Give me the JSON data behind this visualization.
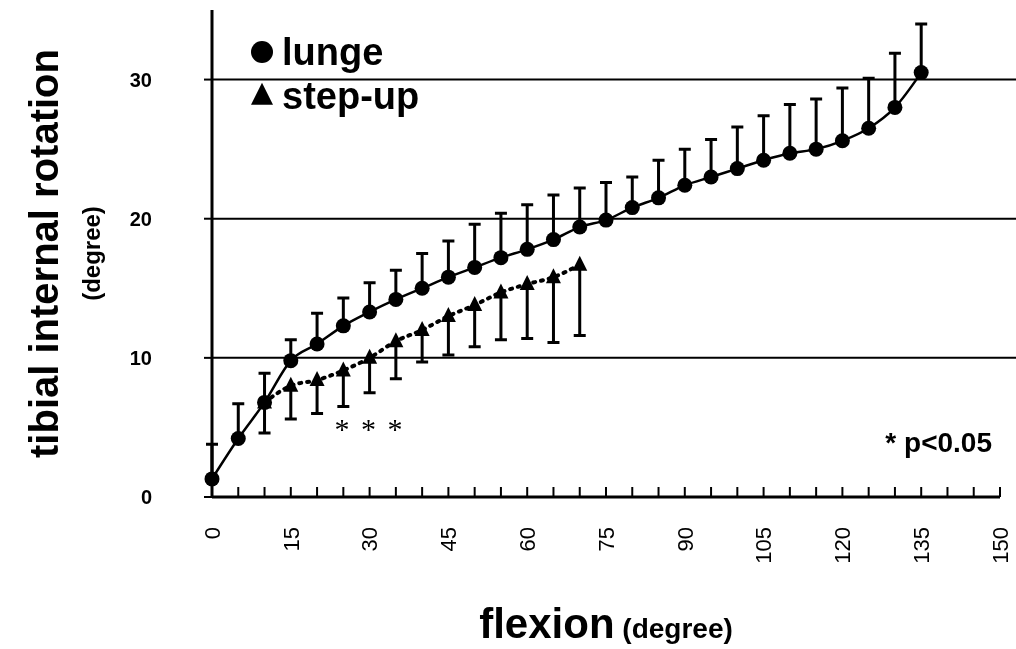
{
  "chart_data": {
    "type": "line",
    "xlabel": "flexion (degree)",
    "ylabel": "tibial internal rotation (degree)",
    "xlim": [
      0,
      150
    ],
    "ylim": [
      0,
      35
    ],
    "xticks": [
      0,
      {
        "value": 5,
        "label": null
      },
      {
        "value": 10,
        "label": null
      },
      15,
      {
        "value": 20,
        "label": null
      },
      {
        "value": 25,
        "label": null
      },
      30,
      {
        "value": 35,
        "label": null
      },
      {
        "value": 40,
        "label": null
      },
      45,
      {
        "value": 50,
        "label": null
      },
      {
        "value": 55,
        "label": null
      },
      60,
      {
        "value": 65,
        "label": null
      },
      {
        "value": 70,
        "label": null
      },
      75,
      {
        "value": 80,
        "label": null
      },
      {
        "value": 85,
        "label": null
      },
      90,
      {
        "value": 95,
        "label": null
      },
      {
        "value": 100,
        "label": null
      },
      105,
      {
        "value": 110,
        "label": null
      },
      {
        "value": 115,
        "label": null
      },
      120,
      {
        "value": 125,
        "label": null
      },
      {
        "value": 130,
        "label": null
      },
      135,
      {
        "value": 140,
        "label": null
      },
      {
        "value": 145,
        "label": null
      },
      150
    ],
    "yticks": [
      0,
      10,
      20,
      30
    ],
    "grid": "y",
    "legend": "top left",
    "series": [
      {
        "name": "lunge",
        "color": "#000000",
        "marker": "circle",
        "line_style": "solid",
        "x": [
          0,
          5,
          10,
          15,
          20,
          25,
          30,
          35,
          40,
          45,
          50,
          55,
          60,
          65,
          70,
          75,
          80,
          85,
          90,
          95,
          100,
          105,
          110,
          115,
          120,
          125,
          130,
          135
        ],
        "values": [
          1.3,
          4.2,
          6.8,
          9.8,
          11.0,
          12.3,
          13.3,
          14.2,
          15.0,
          15.8,
          16.5,
          17.2,
          17.8,
          18.5,
          19.4,
          19.9,
          20.8,
          21.5,
          22.4,
          23.0,
          23.6,
          24.2,
          24.7,
          25.0,
          25.6,
          26.5,
          28.0,
          30.5
        ],
        "errors": [
          [
            1.3,
            3.8
          ],
          [
            4.2,
            6.7
          ],
          [
            6.8,
            8.9
          ],
          [
            9.8,
            11.3
          ],
          [
            11.0,
            13.2
          ],
          [
            12.3,
            14.3
          ],
          [
            13.3,
            15.4
          ],
          [
            14.2,
            16.3
          ],
          [
            15.0,
            17.5
          ],
          [
            15.8,
            18.4
          ],
          [
            16.5,
            19.6
          ],
          [
            17.2,
            20.4
          ],
          [
            17.8,
            21.0
          ],
          [
            18.5,
            21.7
          ],
          [
            19.4,
            22.2
          ],
          [
            19.9,
            22.6
          ],
          [
            20.8,
            23.0
          ],
          [
            21.5,
            24.2
          ],
          [
            22.4,
            25.0
          ],
          [
            23.0,
            25.7
          ],
          [
            23.6,
            26.6
          ],
          [
            24.2,
            27.4
          ],
          [
            24.7,
            28.2
          ],
          [
            25.0,
            28.6
          ],
          [
            25.6,
            29.4
          ],
          [
            26.5,
            30.1
          ],
          [
            28.0,
            31.9
          ],
          [
            30.5,
            34.0
          ]
        ]
      },
      {
        "name": "step-up",
        "color": "#000000",
        "marker": "triangle",
        "line_style": "dotted",
        "x": [
          10,
          15,
          20,
          25,
          30,
          35,
          40,
          45,
          50,
          55,
          60,
          65,
          70
        ],
        "values": [
          6.8,
          8.0,
          8.4,
          9.1,
          10.0,
          11.2,
          12.0,
          13.0,
          13.8,
          14.7,
          15.3,
          15.8,
          16.7
        ],
        "errors": [
          [
            4.6,
            6.8
          ],
          [
            5.6,
            8.0
          ],
          [
            6.0,
            8.4
          ],
          [
            6.5,
            9.1
          ],
          [
            7.5,
            10.0
          ],
          [
            8.5,
            11.2
          ],
          [
            9.7,
            12.0
          ],
          [
            10.2,
            13.0
          ],
          [
            10.8,
            13.8
          ],
          [
            11.3,
            14.7
          ],
          [
            11.4,
            15.3
          ],
          [
            11.1,
            15.8
          ],
          [
            11.6,
            16.7
          ]
        ]
      }
    ],
    "annotations": [
      "* * *",
      "* p<0.05"
    ]
  }
}
